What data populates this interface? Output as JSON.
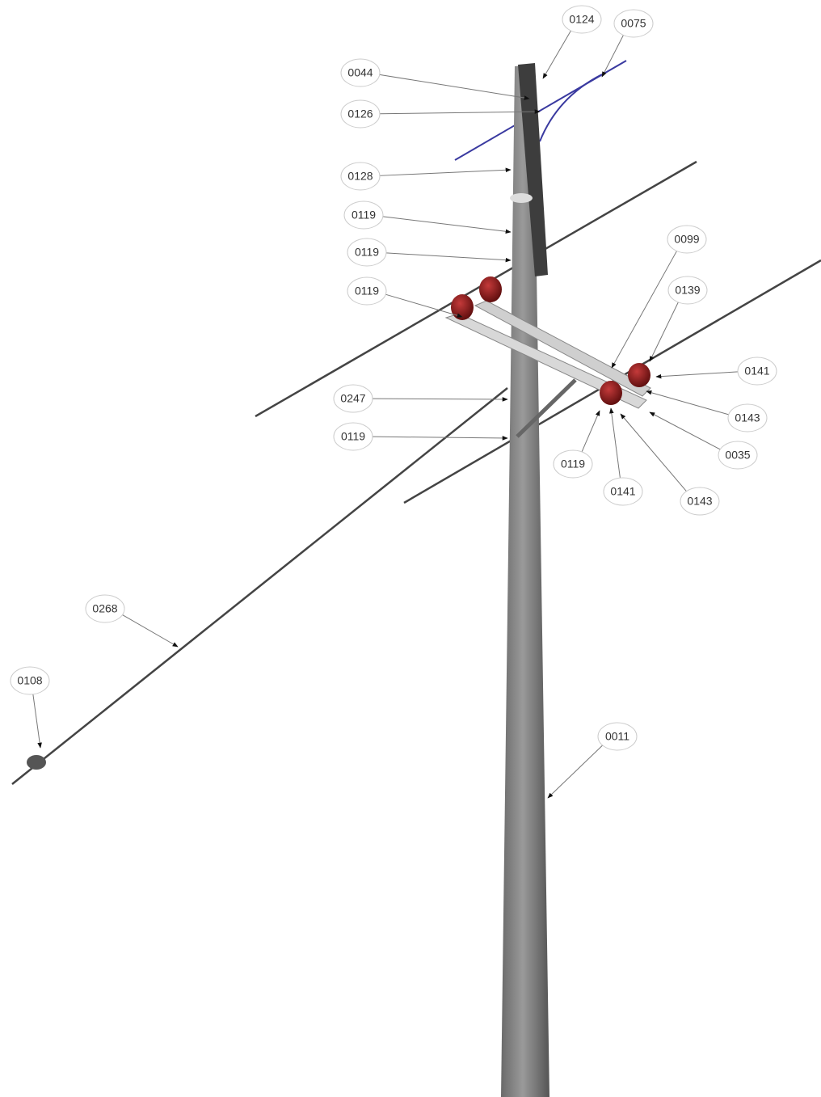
{
  "callouts": [
    {
      "label": "0124"
    },
    {
      "label": "0075"
    },
    {
      "label": "0044"
    },
    {
      "label": "0126"
    },
    {
      "label": "0128"
    },
    {
      "label": "0119"
    },
    {
      "label": "0119"
    },
    {
      "label": "0119"
    },
    {
      "label": "0099"
    },
    {
      "label": "0139"
    },
    {
      "label": "0141"
    },
    {
      "label": "0143"
    },
    {
      "label": "0035"
    },
    {
      "label": "0247"
    },
    {
      "label": "0119"
    },
    {
      "label": "0119"
    },
    {
      "label": "0141"
    },
    {
      "label": "0143"
    },
    {
      "label": "0268"
    },
    {
      "label": "0108"
    },
    {
      "label": "0011"
    }
  ]
}
